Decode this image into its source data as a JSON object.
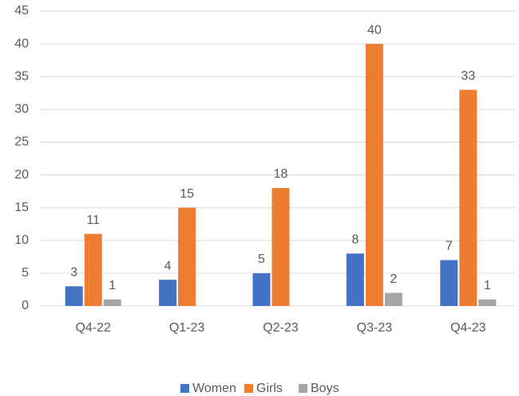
{
  "chart_data": {
    "type": "bar",
    "categories": [
      "Q4-22",
      "Q1-23",
      "Q2-23",
      "Q3-23",
      "Q4-23"
    ],
    "series": [
      {
        "name": "Women",
        "color": "#4472c4",
        "values": [
          3,
          4,
          5,
          8,
          7
        ]
      },
      {
        "name": "Girls",
        "color": "#ed7d31",
        "values": [
          11,
          15,
          18,
          40,
          33
        ]
      },
      {
        "name": "Boys",
        "color": "#a5a5a5",
        "values": [
          1,
          null,
          null,
          2,
          1
        ]
      }
    ],
    "ylim": [
      0,
      45
    ],
    "yticks": [
      0,
      5,
      10,
      15,
      20,
      25,
      30,
      35,
      40,
      45
    ],
    "grid": true,
    "legend": "bottom"
  }
}
